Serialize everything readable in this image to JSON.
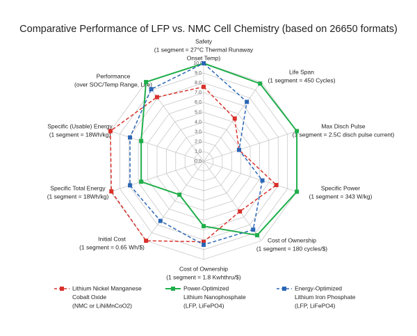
{
  "chart_data": {
    "type": "radar",
    "title": "Comparative Performance of LFP vs. NMC Cell Chemistry (based on 26650 formats)",
    "categories": [
      [
        "Safety",
        "(1 segment = 27°C Thermal Runaway",
        "Onset Temp)"
      ],
      [
        "Life Span",
        "(1 segment = 450 Cycles)"
      ],
      [
        "Max Disch Pulse",
        "(1 segment = 2.5C disch pulse current)"
      ],
      [
        "Specific Power",
        "(1 segment = 343 W/kg)"
      ],
      [
        "Cost of Ownership",
        "(1 segment = 180 cycles/$)"
      ],
      [
        "Cost of Ownership",
        "(1 segment = 1.8 Kwhthru/$)"
      ],
      [
        "Initial Cost",
        "(1 segment = 0.65 Wh/$)"
      ],
      [
        "Specific Total Energy",
        "(1 segment = 18Wh/kg)"
      ],
      [
        "Specific (Usable) Energy",
        "(1 segment = 18Wh/kg)"
      ],
      [
        "Performance",
        "(over SOC/Temp Range, Life)"
      ]
    ],
    "series": [
      {
        "name": [
          "Lithium Nickel Manganese",
          "Cobalt Oxide",
          "(NMC or LiNiMnCoO2)"
        ],
        "color": "#d9302a",
        "dashed": true,
        "values": [
          7.6,
          5.4,
          3.8,
          7.8,
          6.3,
          8.2,
          10,
          9.9,
          10,
          8.1
        ]
      },
      {
        "name": [
          "Power-Optimized",
          "Lithium Nanophosphate",
          "(LFP, LiFePO4)"
        ],
        "color": "#1fae4a",
        "dashed": false,
        "values": [
          10,
          9.8,
          10,
          10,
          9.3,
          6.6,
          4.2,
          6.7,
          6.7,
          10
        ]
      },
      {
        "name": [
          "Energy-Optimized",
          "Lithium Iron Phosphate",
          "(LFP, LiFePO4)"
        ],
        "color": "#2a66b5",
        "dashed": true,
        "values": [
          10,
          7.5,
          3.8,
          6.3,
          8.6,
          8.5,
          7.5,
          7.9,
          7.9,
          9.1
        ]
      }
    ],
    "rlim": [
      0,
      10
    ],
    "rticks": [
      {
        "value": 0,
        "label": "0.0"
      },
      {
        "value": 1,
        "label": "1.0"
      },
      {
        "value": 2,
        "label": "2.0"
      },
      {
        "value": 3,
        "label": "3.0"
      },
      {
        "value": 4,
        "label": "4.0"
      },
      {
        "value": 5,
        "label": "5.0"
      },
      {
        "value": 6,
        "label": "6.0"
      },
      {
        "value": 7,
        "label": "7.0"
      },
      {
        "value": 8,
        "label": "8.0"
      },
      {
        "value": 9,
        "label": "9.0"
      },
      {
        "value": 10,
        "label": "10.0"
      }
    ],
    "grid": true
  }
}
